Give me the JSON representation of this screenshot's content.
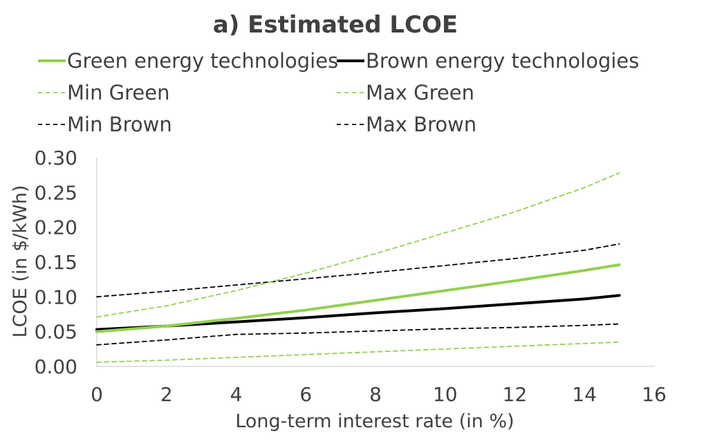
{
  "chart_data": {
    "type": "line",
    "title": "a) Estimated LCOE",
    "xlabel": "Long-term interest rate (in %)",
    "ylabel": "LCOE (in $/kWh)",
    "xlim": [
      0,
      16
    ],
    "ylim": [
      0,
      0.3
    ],
    "xticks": [
      "0",
      "2",
      "4",
      "6",
      "8",
      "10",
      "12",
      "14",
      "16"
    ],
    "yticks": [
      "0.00",
      "0.05",
      "0.10",
      "0.15",
      "0.20",
      "0.25",
      "0.30"
    ],
    "grid": false,
    "legend_position": "top",
    "series": [
      {
        "name": "Green energy technologies",
        "color": "#92d050",
        "style": "solid",
        "x": [
          0,
          2,
          4,
          6,
          8,
          10,
          12,
          14,
          15
        ],
        "y": [
          0.05,
          0.058,
          0.069,
          0.081,
          0.095,
          0.109,
          0.123,
          0.138,
          0.146
        ]
      },
      {
        "name": "Brown energy technologies",
        "color": "#000000",
        "style": "solid",
        "x": [
          0,
          2,
          4,
          6,
          8,
          10,
          12,
          14,
          15
        ],
        "y": [
          0.053,
          0.058,
          0.064,
          0.07,
          0.077,
          0.083,
          0.09,
          0.097,
          0.102
        ]
      },
      {
        "name": "Min Green",
        "color": "#92d050",
        "style": "dashed",
        "x": [
          0,
          2,
          4,
          6,
          8,
          10,
          12,
          14,
          15
        ],
        "y": [
          0.006,
          0.009,
          0.013,
          0.017,
          0.021,
          0.025,
          0.029,
          0.033,
          0.035
        ]
      },
      {
        "name": "Max Green",
        "color": "#92d050",
        "style": "dashed",
        "x": [
          0,
          2,
          4,
          6,
          8,
          10,
          12,
          14,
          15
        ],
        "y": [
          0.071,
          0.087,
          0.109,
          0.134,
          0.162,
          0.192,
          0.222,
          0.257,
          0.278
        ]
      },
      {
        "name": "Min Brown",
        "color": "#000000",
        "style": "dashed",
        "x": [
          0,
          2,
          4,
          6,
          8,
          10,
          12,
          14,
          15
        ],
        "y": [
          0.031,
          0.038,
          0.046,
          0.048,
          0.051,
          0.054,
          0.056,
          0.059,
          0.061
        ]
      },
      {
        "name": "Max Brown",
        "color": "#000000",
        "style": "dashed",
        "x": [
          0,
          2,
          4,
          6,
          8,
          10,
          12,
          14,
          15
        ],
        "y": [
          0.1,
          0.108,
          0.117,
          0.126,
          0.135,
          0.145,
          0.155,
          0.167,
          0.176
        ]
      }
    ]
  }
}
